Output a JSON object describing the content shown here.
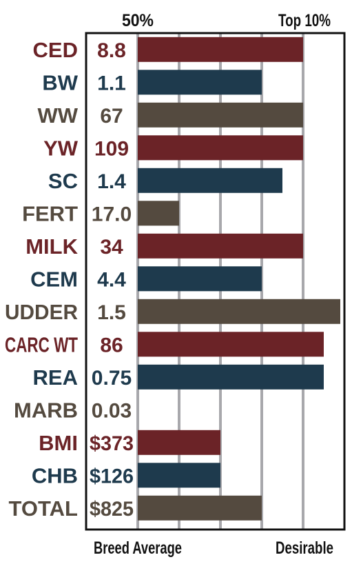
{
  "colors": {
    "red": "#6b2327",
    "blue": "#1e3a4d",
    "brown": "#544a3f",
    "grid": "#a8a8ac",
    "frame": "#111111",
    "text": "#111111"
  },
  "chart_data": {
    "type": "bar",
    "orientation": "horizontal",
    "top_labels": {
      "left": "50%",
      "right": "Top 10%"
    },
    "bottom_labels": {
      "left": "Breed Average",
      "right": "Desirable"
    },
    "grid": true,
    "xlim": [
      0,
      5
    ],
    "rows": [
      {
        "trait": "CED",
        "value": "8.8",
        "bar": 4.0,
        "color": "red"
      },
      {
        "trait": "BW",
        "value": "1.1",
        "bar": 3.0,
        "color": "blue"
      },
      {
        "trait": "WW",
        "value": "67",
        "bar": 4.0,
        "color": "brown"
      },
      {
        "trait": "YW",
        "value": "109",
        "bar": 4.0,
        "color": "red"
      },
      {
        "trait": "SC",
        "value": "1.4",
        "bar": 3.5,
        "color": "blue"
      },
      {
        "trait": "FERT",
        "value": "17.0",
        "bar": 1.0,
        "color": "brown"
      },
      {
        "trait": "MILK",
        "value": "34",
        "bar": 4.0,
        "color": "red"
      },
      {
        "trait": "CEM",
        "value": "4.4",
        "bar": 3.0,
        "color": "blue"
      },
      {
        "trait": "UDDER",
        "value": "1.5",
        "bar": 4.9,
        "color": "brown"
      },
      {
        "trait": "CARC WT",
        "value": "86",
        "bar": 4.5,
        "color": "red"
      },
      {
        "trait": "REA",
        "value": "0.75",
        "bar": 4.5,
        "color": "blue"
      },
      {
        "trait": "MARB",
        "value": "0.03",
        "bar": 0,
        "color": "brown"
      },
      {
        "trait": "BMI",
        "value": "$373",
        "bar": 2.0,
        "color": "red"
      },
      {
        "trait": "CHB",
        "value": "$126",
        "bar": 2.0,
        "color": "blue"
      },
      {
        "trait": "TOTAL",
        "value": "$825",
        "bar": 3.0,
        "color": "brown"
      }
    ]
  }
}
